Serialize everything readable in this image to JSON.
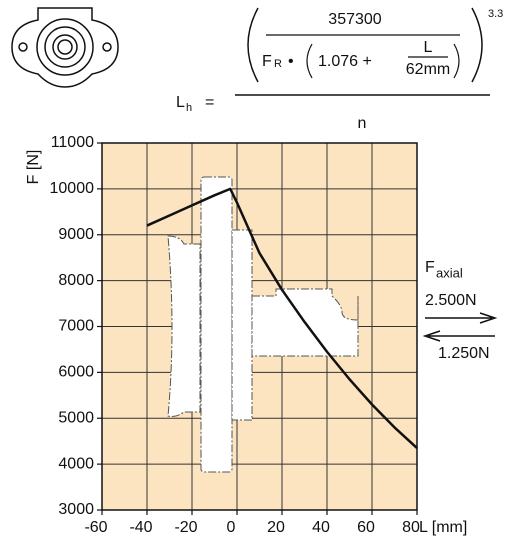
{
  "chart_data": {
    "type": "line",
    "series": [
      {
        "name": null,
        "color": "#111111",
        "x": [
          -40,
          -30,
          -20,
          -10,
          -3,
          0,
          10,
          20,
          30,
          40,
          50,
          60,
          70,
          80
        ],
        "values": [
          9200,
          9420,
          9640,
          9860,
          10000,
          9700,
          8600,
          7800,
          7100,
          6450,
          5850,
          5300,
          4800,
          4350
        ]
      }
    ],
    "xlim": [
      -60,
      80
    ],
    "xticks": [
      -60,
      -40,
      -20,
      0,
      20,
      40,
      60,
      80
    ],
    "ylim": [
      3000,
      11000
    ],
    "yticks": [
      3000,
      4000,
      5000,
      6000,
      7000,
      8000,
      9000,
      10000,
      11000
    ],
    "x_label": "L [mm]",
    "y_label": "F [N]",
    "grid": true,
    "background": "#fce4c0",
    "annotation": {
      "symbol": "F",
      "subscript": "axial",
      "push": "2.500N",
      "pull": "1.250N"
    }
  },
  "formula": {
    "lhs": "L",
    "lhs_sub": "h",
    "equals": "=",
    "numerator": "357300",
    "force": "F",
    "force_sub": "R",
    "dot": "•",
    "factor": "1.076 +",
    "frac_top": "L",
    "frac_bottom": "62mm",
    "exponent": "3.3",
    "denominator": "n"
  }
}
